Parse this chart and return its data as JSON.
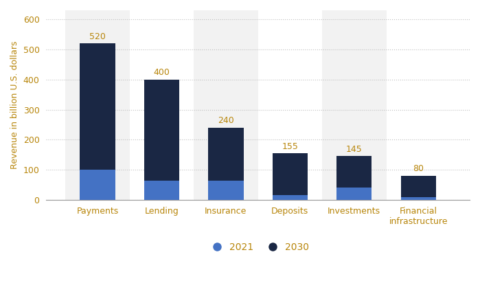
{
  "categories": [
    "Payments",
    "Lending",
    "Insurance",
    "Deposits",
    "Investments",
    "Financial\ninfrastructure"
  ],
  "values_2021": [
    100,
    65,
    65,
    15,
    40,
    10
  ],
  "values_2030_total": [
    520,
    400,
    240,
    155,
    145,
    80
  ],
  "color_2021": "#4472c4",
  "color_2030": "#1a2744",
  "ylabel": "Revenue in billion U.S. dollars",
  "ylim": [
    0,
    630
  ],
  "yticks": [
    0,
    100,
    200,
    300,
    400,
    500,
    600
  ],
  "bar_width": 0.55,
  "label_2021": "2021",
  "label_2030": "2030",
  "background_color": "#ffffff",
  "plot_bg_color": "#ffffff",
  "col_bg_even": "#f2f2f2",
  "col_bg_odd": "#ffffff",
  "grid_color": "#c0c0c0",
  "annotation_values": [
    520,
    400,
    240,
    155,
    145,
    80
  ],
  "annotation_color": "#b8860b",
  "tick_label_color": "#b8860b",
  "ylabel_color": "#b8860b"
}
